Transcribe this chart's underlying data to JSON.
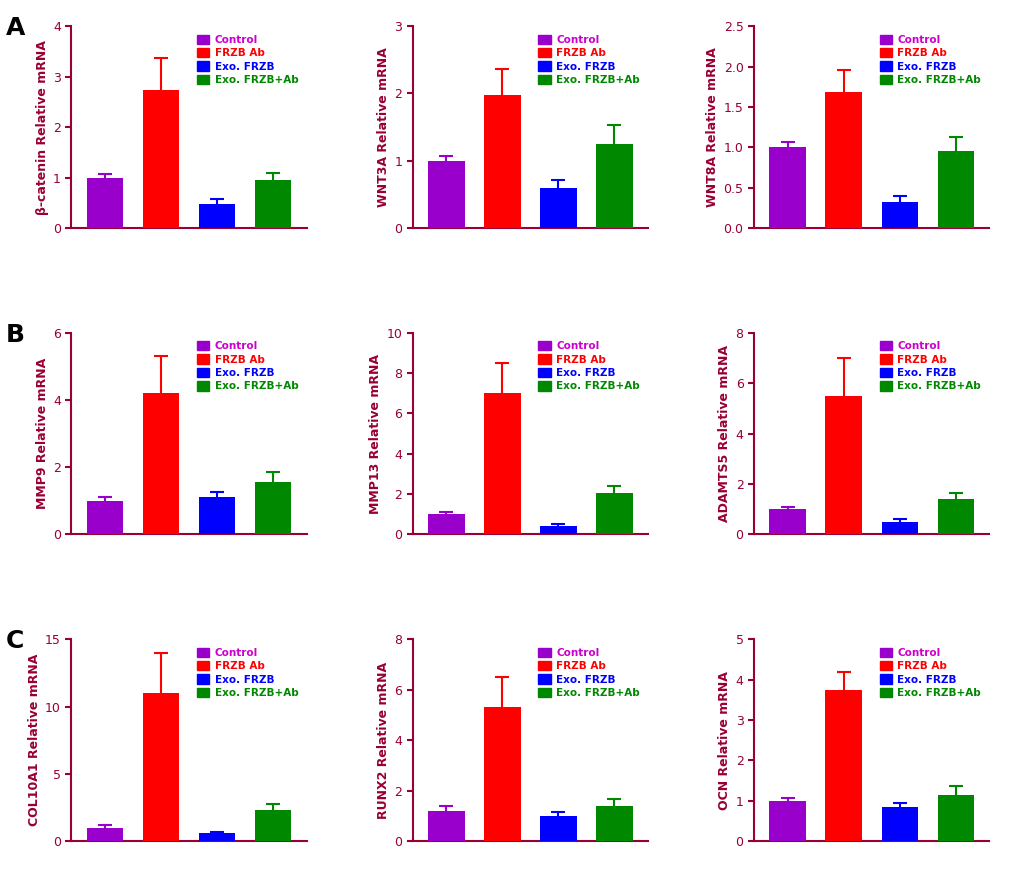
{
  "panels": [
    {
      "row": 0,
      "col": 0,
      "ylabel": "β-catenin Relative mRNA",
      "ylim": [
        0,
        4
      ],
      "yticks": [
        0,
        1,
        2,
        3,
        4
      ],
      "values": [
        1.0,
        2.73,
        0.47,
        0.95
      ],
      "errors": [
        0.07,
        0.65,
        0.1,
        0.13
      ]
    },
    {
      "row": 0,
      "col": 1,
      "ylabel": "WNT3A Relative mRNA",
      "ylim": [
        0,
        3
      ],
      "yticks": [
        0,
        1,
        2,
        3
      ],
      "values": [
        1.0,
        1.98,
        0.6,
        1.25
      ],
      "errors": [
        0.07,
        0.38,
        0.12,
        0.28
      ]
    },
    {
      "row": 0,
      "col": 2,
      "ylabel": "WNT8A Relative mRNA",
      "ylim": [
        0,
        2.5
      ],
      "yticks": [
        0.0,
        0.5,
        1.0,
        1.5,
        2.0,
        2.5
      ],
      "values": [
        1.0,
        1.68,
        0.32,
        0.95
      ],
      "errors": [
        0.07,
        0.28,
        0.07,
        0.18
      ]
    },
    {
      "row": 1,
      "col": 0,
      "ylabel": "MMP9 Relative mRNA",
      "ylim": [
        0,
        6
      ],
      "yticks": [
        0,
        2,
        4,
        6
      ],
      "values": [
        1.0,
        4.2,
        1.1,
        1.55
      ],
      "errors": [
        0.1,
        1.1,
        0.15,
        0.3
      ]
    },
    {
      "row": 1,
      "col": 1,
      "ylabel": "MMP13 Relative mRNA",
      "ylim": [
        0,
        10
      ],
      "yticks": [
        0,
        2,
        4,
        6,
        8,
        10
      ],
      "values": [
        1.0,
        7.0,
        0.4,
        2.05
      ],
      "errors": [
        0.1,
        1.5,
        0.1,
        0.35
      ]
    },
    {
      "row": 1,
      "col": 2,
      "ylabel": "ADAMTS5 Relative mRNA",
      "ylim": [
        0,
        8
      ],
      "yticks": [
        0,
        2,
        4,
        6,
        8
      ],
      "values": [
        1.0,
        5.5,
        0.5,
        1.4
      ],
      "errors": [
        0.1,
        1.5,
        0.1,
        0.25
      ]
    },
    {
      "row": 2,
      "col": 0,
      "ylabel": "COL10A1 Relative mRNA",
      "ylim": [
        0,
        15
      ],
      "yticks": [
        0,
        5,
        10,
        15
      ],
      "values": [
        1.0,
        11.0,
        0.6,
        2.3
      ],
      "errors": [
        0.2,
        3.0,
        0.1,
        0.45
      ]
    },
    {
      "row": 2,
      "col": 1,
      "ylabel": "RUNX2 Relative mRNA",
      "ylim": [
        0,
        8
      ],
      "yticks": [
        0,
        2,
        4,
        6,
        8
      ],
      "values": [
        1.2,
        5.3,
        1.0,
        1.4
      ],
      "errors": [
        0.2,
        1.2,
        0.15,
        0.25
      ]
    },
    {
      "row": 2,
      "col": 2,
      "ylabel": "OCN Relative mRNA",
      "ylim": [
        0,
        5
      ],
      "yticks": [
        0,
        1,
        2,
        3,
        4,
        5
      ],
      "values": [
        1.0,
        3.75,
        0.85,
        1.15
      ],
      "errors": [
        0.07,
        0.45,
        0.1,
        0.22
      ]
    }
  ],
  "bar_colors": [
    "#9900cc",
    "#ff0000",
    "#0000ff",
    "#008800"
  ],
  "legend_labels": [
    "Control",
    "FRZB Ab",
    "Exo. FRZB",
    "Exo. FRZB+Ab"
  ],
  "legend_colors_text": [
    "#cc00cc",
    "#ff0000",
    "#0000ff",
    "#008800"
  ],
  "row_labels": [
    "A",
    "B",
    "C"
  ],
  "axis_color": "#990033",
  "ylabel_color": "#990033",
  "tick_color": "#990033",
  "background_color": "#ffffff",
  "bar_width": 0.65,
  "capsize": 5
}
